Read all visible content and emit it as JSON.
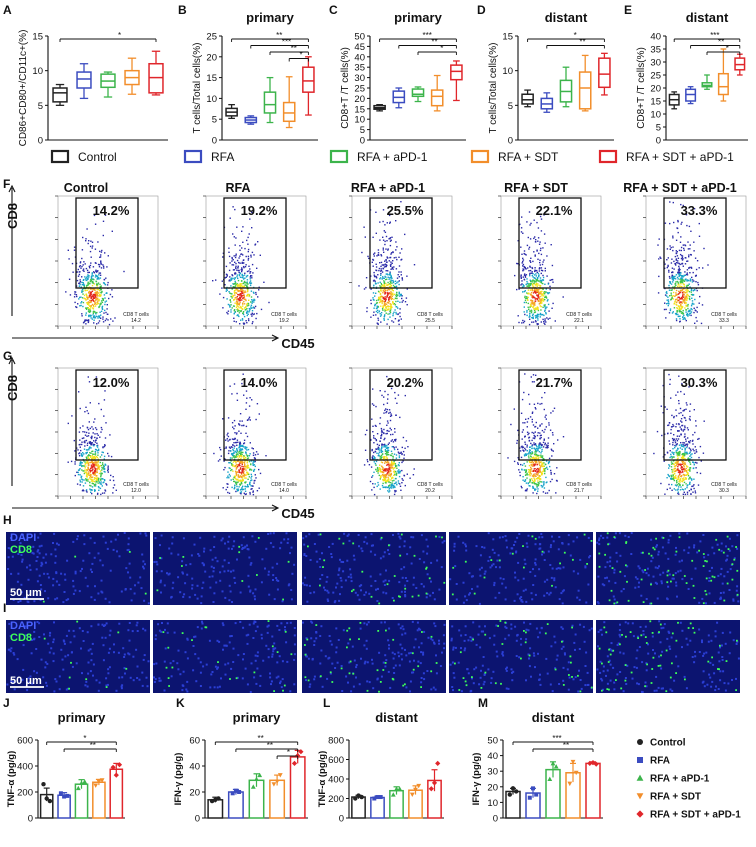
{
  "figure": {
    "panel_letters": [
      "A",
      "B",
      "C",
      "D",
      "E",
      "F",
      "G",
      "H",
      "I",
      "J",
      "K",
      "L",
      "M"
    ],
    "groups": [
      "Control",
      "RFA",
      "RFA + aPD-1",
      "RFA + SDT",
      "RFA + SDT + aPD-1"
    ],
    "group_colors": [
      "#222222",
      "#3b4cc0",
      "#3cb44b",
      "#f28e2b",
      "#e0262b"
    ]
  },
  "chart_data": [
    {
      "type": "box",
      "panel": "A",
      "title": "",
      "ylabel": "CD86+CD80+/CD11c+(%)",
      "ylim": [
        0,
        15
      ],
      "ticks": [
        0,
        5,
        10,
        15
      ],
      "categories": [
        "Control",
        "RFA",
        "RFA + aPD-1",
        "RFA + SDT",
        "RFA + SDT + aPD-1"
      ],
      "boxes": [
        [
          5.0,
          5.5,
          6.8,
          7.5,
          8.0
        ],
        [
          6.0,
          7.5,
          8.8,
          9.8,
          11.0
        ],
        [
          6.2,
          7.6,
          8.5,
          9.5,
          9.8
        ],
        [
          6.6,
          8.0,
          9.0,
          10.0,
          11.8
        ],
        [
          6.5,
          6.8,
          9.0,
          11.0,
          12.8
        ]
      ],
      "significance": [
        {
          "from": 0,
          "to": 4,
          "label": "*"
        }
      ]
    },
    {
      "type": "box",
      "panel": "B",
      "title": "primary",
      "ylabel": "T cells/Total cells(%)",
      "ylim": [
        0,
        25
      ],
      "ticks": [
        0,
        5,
        10,
        15,
        20,
        25
      ],
      "categories": [
        "Control",
        "RFA",
        "RFA + aPD-1",
        "RFA + SDT",
        "RFA + SDT + aPD-1"
      ],
      "boxes": [
        [
          5.2,
          5.8,
          6.7,
          7.6,
          8.5
        ],
        [
          3.8,
          4.2,
          4.8,
          5.4,
          5.8
        ],
        [
          4.2,
          6.5,
          8.5,
          11.5,
          15.0
        ],
        [
          3.0,
          4.5,
          6.5,
          9.0,
          15.2
        ],
        [
          6.0,
          11.5,
          14.2,
          17.5,
          20.0
        ]
      ],
      "significance": [
        {
          "from": 0,
          "to": 4,
          "label": "**"
        },
        {
          "from": 1,
          "to": 4,
          "label": "***"
        },
        {
          "from": 2,
          "to": 4,
          "label": "**"
        },
        {
          "from": 3,
          "to": 4,
          "label": "*"
        }
      ]
    },
    {
      "type": "box",
      "panel": "C",
      "title": "primary",
      "ylabel": "CD8+T /T cells(%)",
      "ylim": [
        0,
        50
      ],
      "ticks": [
        0,
        5,
        10,
        15,
        20,
        25,
        30,
        35,
        40,
        45,
        50
      ],
      "categories": [
        "Control",
        "RFA",
        "RFA + aPD-1",
        "RFA + SDT",
        "RFA + SDT + aPD-1"
      ],
      "boxes": [
        [
          14.0,
          14.8,
          15.5,
          16.5,
          17.0
        ],
        [
          15.5,
          18.0,
          20.5,
          23.5,
          25.0
        ],
        [
          18.5,
          21.0,
          22.0,
          24.5,
          25.5
        ],
        [
          14.0,
          16.5,
          21.0,
          24.0,
          31.0
        ],
        [
          19.0,
          29.0,
          33.0,
          36.0,
          38.0
        ]
      ],
      "significance": [
        {
          "from": 0,
          "to": 4,
          "label": "***"
        },
        {
          "from": 1,
          "to": 4,
          "label": "**"
        },
        {
          "from": 2,
          "to": 4,
          "label": "*"
        }
      ]
    },
    {
      "type": "box",
      "panel": "D",
      "title": "distant",
      "ylabel": "T cells/Total cells(%)",
      "ylim": [
        0,
        15
      ],
      "ticks": [
        0,
        5,
        10,
        15
      ],
      "categories": [
        "Control",
        "RFA",
        "RFA + aPD-1",
        "RFA + SDT",
        "RFA + SDT + aPD-1"
      ],
      "boxes": [
        [
          4.8,
          5.2,
          5.8,
          6.6,
          7.2
        ],
        [
          4.0,
          4.5,
          5.2,
          6.0,
          6.8
        ],
        [
          4.8,
          5.5,
          7.0,
          8.6,
          10.5
        ],
        [
          4.2,
          4.5,
          7.5,
          9.8,
          12.2
        ],
        [
          6.5,
          7.6,
          9.5,
          11.8,
          12.5
        ]
      ],
      "significance": [
        {
          "from": 0,
          "to": 4,
          "label": "*"
        },
        {
          "from": 1,
          "to": 4,
          "label": "**"
        }
      ]
    },
    {
      "type": "box",
      "panel": "E",
      "title": "distant",
      "ylabel": "CD8+T /T cells(%)",
      "ylim": [
        0,
        40
      ],
      "ticks": [
        0,
        5,
        10,
        15,
        20,
        25,
        30,
        35,
        40
      ],
      "categories": [
        "Control",
        "RFA",
        "RFA + aPD-1",
        "RFA + SDT",
        "RFA + SDT + aPD-1"
      ],
      "boxes": [
        [
          12.0,
          13.5,
          15.5,
          17.5,
          18.5
        ],
        [
          14.0,
          15.0,
          17.5,
          19.5,
          20.5
        ],
        [
          19.5,
          20.5,
          21.0,
          22.0,
          25.0
        ],
        [
          15.0,
          17.5,
          20.5,
          25.5,
          35.0
        ],
        [
          25.0,
          27.0,
          29.0,
          31.5,
          33.0
        ]
      ],
      "significance": [
        {
          "from": 0,
          "to": 4,
          "label": "***"
        },
        {
          "from": 1,
          "to": 4,
          "label": "**"
        },
        {
          "from": 2,
          "to": 4,
          "label": "*"
        }
      ]
    },
    {
      "type": "scatter",
      "panel": "F",
      "xlabel": "CD45",
      "ylabel": "CD8",
      "gate_name": "CD8 T cells",
      "categories": [
        "Control",
        "RFA",
        "RFA + aPD-1",
        "RFA + SDT",
        "RFA + SDT + aPD-1"
      ],
      "percentages": [
        "14.2%",
        "19.2%",
        "25.5%",
        "22.1%",
        "33.3%"
      ],
      "gate_values": [
        "14.2",
        "19.2",
        "25.5",
        "22.1",
        "33.3"
      ]
    },
    {
      "type": "scatter",
      "panel": "G",
      "xlabel": "CD45",
      "ylabel": "CD8",
      "gate_name": "CD8 T cells",
      "categories": [
        "Control",
        "RFA",
        "RFA + aPD-1",
        "RFA + SDT",
        "RFA + SDT + aPD-1"
      ],
      "percentages": [
        "12.0%",
        "14.0%",
        "20.2%",
        "21.7%",
        "30.3%"
      ],
      "gate_values": [
        "12.0",
        "14.0",
        "20.2",
        "21.7",
        "30.3"
      ]
    },
    {
      "type": "image",
      "panel": "H",
      "channels": [
        "DAPI",
        "CD8"
      ],
      "scale_bar": "50 μm",
      "cd8_density": [
        0.02,
        0.05,
        0.15,
        0.09,
        0.3
      ]
    },
    {
      "type": "image",
      "panel": "I",
      "channels": [
        "DAPI",
        "CD8"
      ],
      "scale_bar": "50 μm",
      "cd8_density": [
        0.04,
        0.1,
        0.18,
        0.16,
        0.26
      ]
    },
    {
      "type": "bar",
      "panel": "J",
      "title": "primary",
      "ylabel": "TNF-α (pg/g)",
      "ylim": [
        0,
        600
      ],
      "ticks": [
        0,
        200,
        400,
        600
      ],
      "categories": [
        "Control",
        "RFA",
        "RFA + aPD-1",
        "RFA + SDT",
        "RFA + SDT + aPD-1"
      ],
      "values": [
        180,
        175,
        260,
        275,
        375
      ],
      "errors": [
        50,
        20,
        35,
        22,
        45
      ],
      "points": [
        [
          260,
          150,
          130
        ],
        [
          190,
          165,
          170
        ],
        [
          230,
          270,
          280
        ],
        [
          250,
          280,
          290
        ],
        [
          390,
          330,
          410
        ]
      ],
      "significance": [
        {
          "from": 0,
          "to": 4,
          "label": "*"
        },
        {
          "from": 1,
          "to": 4,
          "label": "**"
        }
      ]
    },
    {
      "type": "bar",
      "panel": "K",
      "title": "primary",
      "ylabel": "IFN-γ (pg/g)",
      "ylim": [
        0,
        60
      ],
      "ticks": [
        0,
        20,
        40,
        60
      ],
      "categories": [
        "Control",
        "RFA",
        "RFA + aPD-1",
        "RFA + SDT",
        "RFA + SDT + aPD-1"
      ],
      "values": [
        14,
        20,
        29,
        29,
        47
      ],
      "errors": [
        2,
        2,
        5,
        4,
        5
      ],
      "points": [
        [
          13,
          14,
          15
        ],
        [
          19,
          21,
          20
        ],
        [
          24,
          30,
          33
        ],
        [
          26,
          28,
          33
        ],
        [
          42,
          48,
          51
        ]
      ],
      "significance": [
        {
          "from": 0,
          "to": 4,
          "label": "**"
        },
        {
          "from": 1,
          "to": 4,
          "label": "**"
        },
        {
          "from": 3,
          "to": 4,
          "label": "*"
        }
      ]
    },
    {
      "type": "bar",
      "panel": "L",
      "title": "distant",
      "ylabel": "TNF-α (pg/g)",
      "ylim": [
        0,
        800
      ],
      "ticks": [
        0,
        200,
        400,
        600,
        800
      ],
      "categories": [
        "Control",
        "RFA",
        "RFA + aPD-1",
        "RFA + SDT",
        "RFA + SDT + aPD-1"
      ],
      "values": [
        215,
        210,
        280,
        285,
        385
      ],
      "errors": [
        18,
        15,
        40,
        45,
        110
      ],
      "points": [
        [
          200,
          230,
          215
        ],
        [
          200,
          215,
          215
        ],
        [
          240,
          300,
          300
        ],
        [
          240,
          290,
          330
        ],
        [
          300,
          360,
          560
        ]
      ],
      "significance": []
    },
    {
      "type": "bar",
      "panel": "M",
      "title": "distant",
      "ylabel": "IFN-γ (pg/g)",
      "ylim": [
        0,
        50
      ],
      "ticks": [
        0,
        10,
        20,
        30,
        40,
        50
      ],
      "categories": [
        "Control",
        "RFA",
        "RFA + aPD-1",
        "RFA + SDT",
        "RFA + SDT + aPD-1"
      ],
      "values": [
        17,
        16,
        31,
        29,
        35
      ],
      "errors": [
        2,
        3,
        5,
        6,
        1
      ],
      "points": [
        [
          15,
          19,
          17
        ],
        [
          13,
          19,
          15
        ],
        [
          25,
          35,
          33
        ],
        [
          22,
          36,
          29
        ],
        [
          35,
          35.5,
          34.5
        ]
      ],
      "significance": [
        {
          "from": 0,
          "to": 4,
          "label": "***"
        },
        {
          "from": 1,
          "to": 4,
          "label": "**"
        }
      ]
    }
  ]
}
